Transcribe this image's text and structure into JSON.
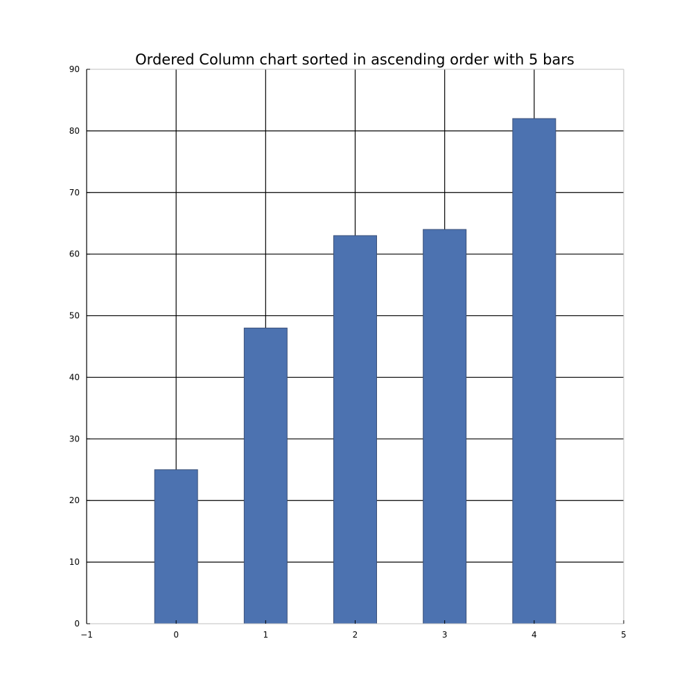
{
  "chart_data": {
    "type": "bar",
    "title": "Ordered Column chart sorted in ascending order with 5 bars",
    "xlabel": "",
    "ylabel": "",
    "x": [
      0,
      1,
      2,
      3,
      4
    ],
    "values": [
      25,
      48,
      63,
      64,
      82
    ],
    "xlim": [
      -1,
      5
    ],
    "ylim": [
      0,
      90
    ],
    "x_ticks": [
      "−1",
      "0",
      "1",
      "2",
      "3",
      "4",
      "5"
    ],
    "y_ticks": [
      "0",
      "10",
      "20",
      "30",
      "40",
      "50",
      "60",
      "70",
      "80",
      "90"
    ],
    "bar_width": 0.48,
    "grid": true,
    "legend": "none",
    "colors": {
      "bar": "#4c72b0",
      "grid": "#000000",
      "frame": "#bfbfbf"
    }
  }
}
